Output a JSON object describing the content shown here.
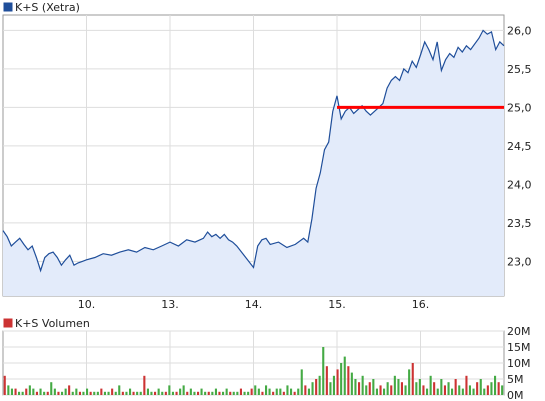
{
  "chart_data": [
    {
      "type": "line",
      "legend": "K+S (Xetra)",
      "x_ticks": [
        "10.",
        "13.",
        "14.",
        "15.",
        "16."
      ],
      "y_ticks": [
        "23,0",
        "23,5",
        "24,0",
        "24,5",
        "25,0",
        "25,5",
        "26,0"
      ],
      "ylim": [
        22.55,
        26.2
      ],
      "reference_line": 25.0,
      "grid": true,
      "legend_position": "top-left",
      "colors": {
        "line": "#1f4e9a",
        "fill": "#e3ebfa",
        "reference": "#ff0000",
        "legend_marker": "#1f4e9a"
      },
      "series": [
        {
          "name": "K+S (Xetra)",
          "points": [
            [
              0.0,
              23.4
            ],
            [
              0.05,
              23.32
            ],
            [
              0.1,
              23.2
            ],
            [
              0.15,
              23.25
            ],
            [
              0.2,
              23.3
            ],
            [
              0.25,
              23.22
            ],
            [
              0.3,
              23.15
            ],
            [
              0.35,
              23.2
            ],
            [
              0.4,
              23.05
            ],
            [
              0.45,
              22.88
            ],
            [
              0.5,
              23.05
            ],
            [
              0.55,
              23.1
            ],
            [
              0.6,
              23.12
            ],
            [
              0.65,
              23.05
            ],
            [
              0.7,
              22.95
            ],
            [
              0.75,
              23.02
            ],
            [
              0.8,
              23.08
            ],
            [
              0.85,
              22.95
            ],
            [
              0.9,
              22.98
            ],
            [
              0.95,
              23.0
            ],
            [
              1.0,
              23.02
            ],
            [
              1.1,
              23.05
            ],
            [
              1.2,
              23.1
            ],
            [
              1.3,
              23.08
            ],
            [
              1.4,
              23.12
            ],
            [
              1.5,
              23.15
            ],
            [
              1.6,
              23.12
            ],
            [
              1.7,
              23.18
            ],
            [
              1.8,
              23.15
            ],
            [
              1.9,
              23.2
            ],
            [
              2.0,
              23.25
            ],
            [
              2.1,
              23.2
            ],
            [
              2.2,
              23.28
            ],
            [
              2.3,
              23.25
            ],
            [
              2.4,
              23.3
            ],
            [
              2.45,
              23.38
            ],
            [
              2.5,
              23.32
            ],
            [
              2.55,
              23.35
            ],
            [
              2.6,
              23.3
            ],
            [
              2.65,
              23.35
            ],
            [
              2.7,
              23.28
            ],
            [
              2.75,
              23.25
            ],
            [
              2.8,
              23.2
            ],
            [
              3.0,
              22.92
            ],
            [
              3.05,
              23.2
            ],
            [
              3.1,
              23.28
            ],
            [
              3.15,
              23.3
            ],
            [
              3.2,
              23.22
            ],
            [
              3.3,
              23.25
            ],
            [
              3.4,
              23.18
            ],
            [
              3.5,
              23.22
            ],
            [
              3.6,
              23.3
            ],
            [
              3.65,
              23.25
            ],
            [
              3.7,
              23.55
            ],
            [
              3.75,
              23.95
            ],
            [
              3.8,
              24.15
            ],
            [
              3.85,
              24.45
            ],
            [
              3.9,
              24.55
            ],
            [
              3.95,
              24.95
            ],
            [
              4.0,
              25.15
            ],
            [
              4.05,
              24.85
            ],
            [
              4.1,
              24.95
            ],
            [
              4.15,
              25.0
            ],
            [
              4.2,
              24.92
            ],
            [
              4.3,
              25.02
            ],
            [
              4.35,
              24.95
            ],
            [
              4.4,
              24.9
            ],
            [
              4.5,
              25.0
            ],
            [
              4.55,
              25.05
            ],
            [
              4.6,
              25.25
            ],
            [
              4.65,
              25.35
            ],
            [
              4.7,
              25.4
            ],
            [
              4.75,
              25.35
            ],
            [
              4.8,
              25.5
            ],
            [
              4.85,
              25.45
            ],
            [
              4.9,
              25.6
            ],
            [
              4.95,
              25.52
            ],
            [
              5.0,
              25.68
            ],
            [
              5.05,
              25.85
            ],
            [
              5.1,
              25.75
            ],
            [
              5.15,
              25.62
            ],
            [
              5.2,
              25.85
            ],
            [
              5.25,
              25.48
            ],
            [
              5.3,
              25.62
            ],
            [
              5.35,
              25.7
            ],
            [
              5.4,
              25.65
            ],
            [
              5.45,
              25.78
            ],
            [
              5.5,
              25.72
            ],
            [
              5.55,
              25.8
            ],
            [
              5.6,
              25.75
            ],
            [
              5.7,
              25.9
            ],
            [
              5.75,
              26.0
            ],
            [
              5.8,
              25.95
            ],
            [
              5.85,
              25.98
            ],
            [
              5.9,
              25.75
            ],
            [
              5.95,
              25.85
            ],
            [
              6.0,
              25.8
            ]
          ]
        }
      ],
      "x_domain": [
        0,
        6.0
      ],
      "x_tick_positions": [
        1.0,
        2.0,
        3.0,
        4.0,
        5.0
      ]
    },
    {
      "type": "bar",
      "legend": "K+S Volumen",
      "y_ticks": [
        "0M",
        "5M",
        "10M",
        "15M",
        "20M"
      ],
      "ylim": [
        0,
        20
      ],
      "grid": true,
      "legend_position": "top-left",
      "colors": {
        "bar": "#cc3333",
        "bar_alt": "#44aa44",
        "legend_marker": "#cc3333"
      },
      "series": [
        {
          "name": "K+S Volumen",
          "values": [
            6,
            3,
            2,
            2,
            1,
            1,
            2,
            3,
            2,
            1,
            2,
            1,
            1,
            4,
            2,
            1,
            1,
            2,
            3,
            1,
            2,
            1,
            1,
            2,
            1,
            1,
            1,
            2,
            1,
            1,
            2,
            1,
            3,
            1,
            1,
            2,
            1,
            1,
            1,
            6,
            2,
            1,
            1,
            2,
            1,
            1,
            3,
            1,
            1,
            2,
            3,
            1,
            2,
            1,
            1,
            2,
            1,
            1,
            1,
            2,
            1,
            1,
            2,
            1,
            1,
            1,
            2,
            1,
            1,
            2,
            3,
            2,
            1,
            3,
            2,
            1,
            2,
            2,
            1,
            3,
            2,
            1,
            2,
            8,
            3,
            2,
            4,
            5,
            6,
            15,
            9,
            4,
            6,
            8,
            10,
            12,
            9,
            7,
            5,
            4,
            6,
            3,
            4,
            5,
            2,
            3,
            2,
            4,
            3,
            6,
            5,
            4,
            3,
            8,
            10,
            4,
            5,
            3,
            2,
            6,
            4,
            2,
            5,
            3,
            4,
            2,
            5,
            3,
            2,
            6,
            3,
            2,
            4,
            5,
            2,
            3,
            4,
            6,
            4,
            3
          ]
        }
      ]
    }
  ]
}
